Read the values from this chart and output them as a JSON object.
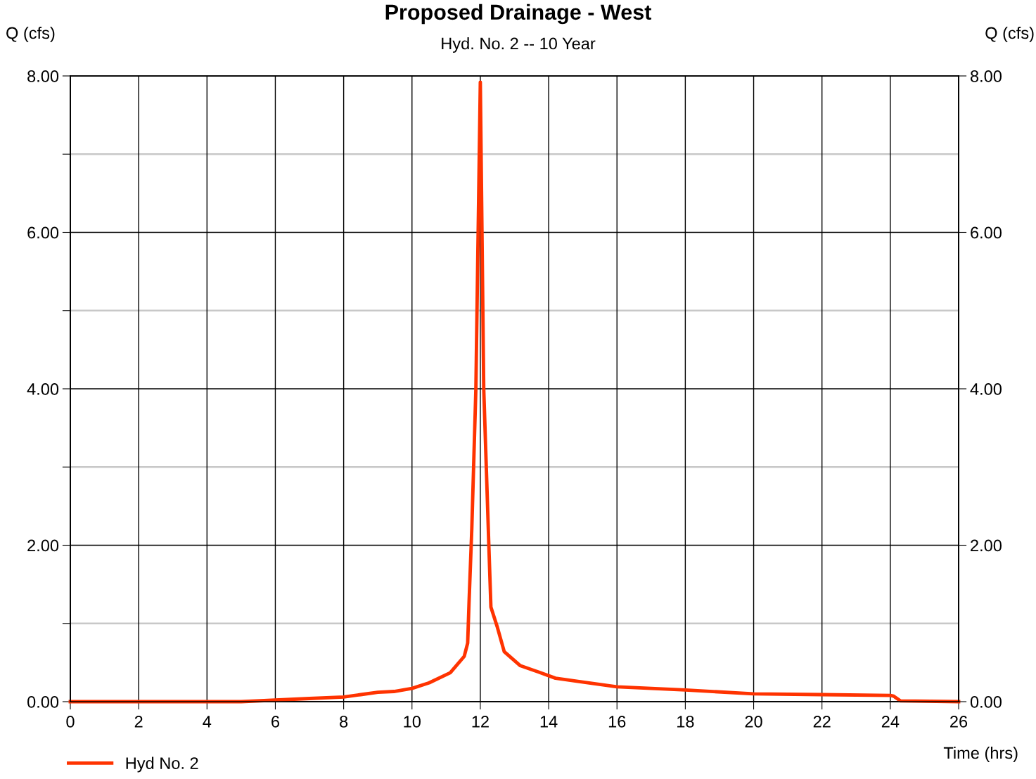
{
  "chart_data": {
    "type": "line",
    "title": "Proposed Drainage - West",
    "subtitle": "Hyd. No. 2 -- 10 Year",
    "xlabel": "Time (hrs)",
    "ylabel": "Q (cfs)",
    "y2label": "Q (cfs)",
    "xlim": [
      0,
      26
    ],
    "xticks": [
      0,
      2,
      4,
      6,
      8,
      10,
      12,
      14,
      16,
      18,
      20,
      22,
      24,
      26
    ],
    "ylim": [
      0,
      8
    ],
    "yticks": [
      {
        "value": 0,
        "label": "0.00"
      },
      {
        "value": 1,
        "label": null
      },
      {
        "value": 2,
        "label": "2.00"
      },
      {
        "value": 3,
        "label": null
      },
      {
        "value": 4,
        "label": "4.00"
      },
      {
        "value": 5,
        "label": null
      },
      {
        "value": 6,
        "label": "6.00"
      },
      {
        "value": 7,
        "label": null
      },
      {
        "value": 8,
        "label": "8.00"
      }
    ],
    "y2lim": [
      0,
      8
    ],
    "y2ticks": [
      {
        "value": 0,
        "label": "0.00"
      },
      {
        "value": 2,
        "label": "2.00"
      },
      {
        "value": 4,
        "label": "4.00"
      },
      {
        "value": 6,
        "label": "6.00"
      },
      {
        "value": 8,
        "label": "8.00"
      }
    ],
    "grid": true,
    "legend": "bottom left",
    "marker": "none",
    "line_style": "solid",
    "series": [
      {
        "name": "Hyd No. 2",
        "color": "#ff3300",
        "x": [
          0,
          5,
          6,
          7,
          8,
          8.5,
          9,
          9.47,
          10,
          10.5,
          11.12,
          11.53,
          11.63,
          11.67,
          11.75,
          11.87,
          12,
          12.1,
          12.25,
          12.31,
          12.5,
          12.7,
          13.17,
          13.7,
          14.2,
          15,
          16,
          18,
          20,
          22,
          24,
          24.1,
          24.3,
          26
        ],
        "values": [
          0,
          0,
          0.02,
          0.04,
          0.06,
          0.09,
          0.12,
          0.13,
          0.17,
          0.24,
          0.37,
          0.58,
          0.75,
          1.27,
          2.2,
          4.0,
          7.92,
          4.0,
          1.99,
          1.21,
          0.95,
          0.64,
          0.46,
          0.38,
          0.3,
          0.25,
          0.19,
          0.15,
          0.1,
          0.09,
          0.08,
          0.07,
          0.01,
          0
        ]
      }
    ]
  }
}
